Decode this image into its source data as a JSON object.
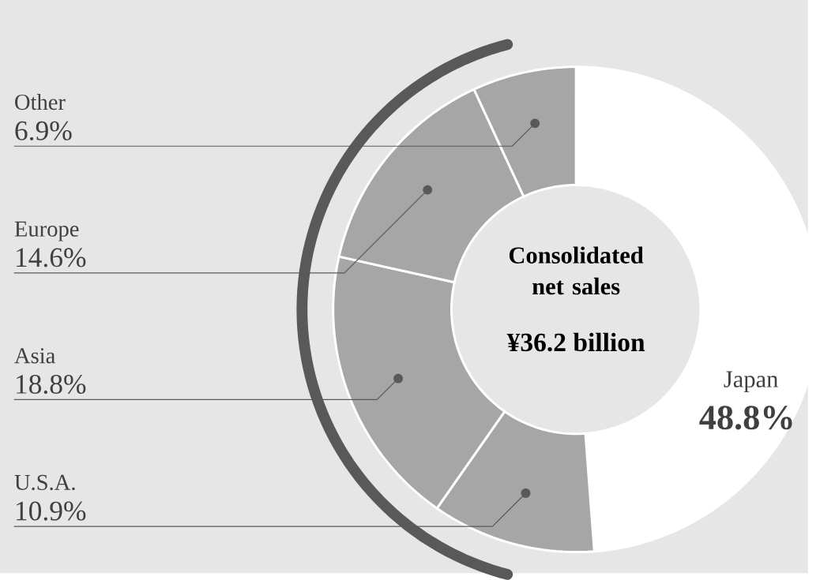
{
  "chart_data": {
    "type": "donut",
    "title": "Consolidated net sales",
    "annotations": [
      "¥36.2 billion"
    ],
    "categories": [
      "Japan",
      "U.S.A.",
      "Asia",
      "Europe",
      "Other"
    ],
    "values": [
      48.8,
      10.9,
      18.8,
      14.6,
      6.9
    ],
    "value_labels": [
      "48.8%",
      "10.9%",
      "18.8%",
      "14.6%",
      "6.9%"
    ],
    "colors": [
      "#ffffff",
      "#a6a6a6",
      "#a6a6a6",
      "#a6a6a6",
      "#a6a6a6"
    ]
  }
}
